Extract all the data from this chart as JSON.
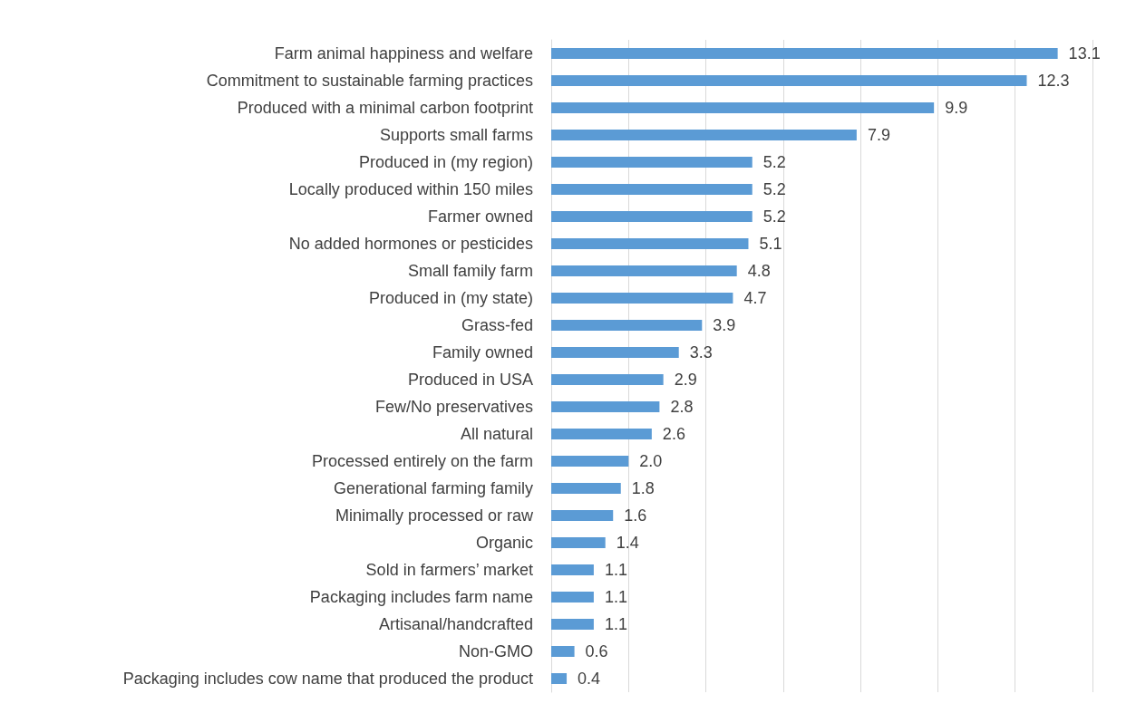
{
  "chart_data": {
    "type": "bar",
    "orientation": "horizontal",
    "categories": [
      "Farm animal happiness and welfare",
      "Commitment to sustainable farming practices",
      "Produced with a minimal carbon footprint",
      "Supports small farms",
      "Produced in (my region)",
      "Locally produced within 150 miles",
      "Farmer owned",
      "No added hormones or pesticides",
      "Small family farm",
      "Produced in (my state)",
      "Grass-fed",
      "Family owned",
      "Produced in USA",
      "Few/No preservatives",
      "All natural",
      "Processed entirely on the farm",
      "Generational farming family",
      "Minimally processed or raw",
      "Organic",
      "Sold in farmers’ market",
      "Packaging includes farm name",
      "Artisanal/handcrafted",
      "Non-GMO",
      "Packaging includes cow name that produced the product"
    ],
    "values": [
      13.1,
      12.3,
      9.9,
      7.9,
      5.2,
      5.2,
      5.2,
      5.1,
      4.8,
      4.7,
      3.9,
      3.3,
      2.9,
      2.8,
      2.6,
      2.0,
      1.8,
      1.6,
      1.4,
      1.1,
      1.1,
      1.1,
      0.6,
      0.4
    ],
    "value_labels": [
      "13.1",
      "12.3",
      "9.9",
      "7.9",
      "5.2",
      "5.2",
      "5.2",
      "5.1",
      "4.8",
      "4.7",
      "3.9",
      "3.3",
      "2.9",
      "2.8",
      "2.6",
      "2.0",
      "1.8",
      "1.6",
      "1.4",
      "1.1",
      "1.1",
      "1.1",
      "0.6",
      "0.4"
    ],
    "color": "#5b9bd5",
    "xlim": [
      0,
      14
    ],
    "xticks": [
      {
        "value": 0,
        "label": null
      },
      {
        "value": 2,
        "label": null
      },
      {
        "value": 4,
        "label": null
      },
      {
        "value": 6,
        "label": null
      },
      {
        "value": 8,
        "label": null
      },
      {
        "value": 10,
        "label": null
      },
      {
        "value": 12,
        "label": null
      },
      {
        "value": 14,
        "label": null
      }
    ],
    "tick_labels": "y",
    "grid": "x"
  }
}
